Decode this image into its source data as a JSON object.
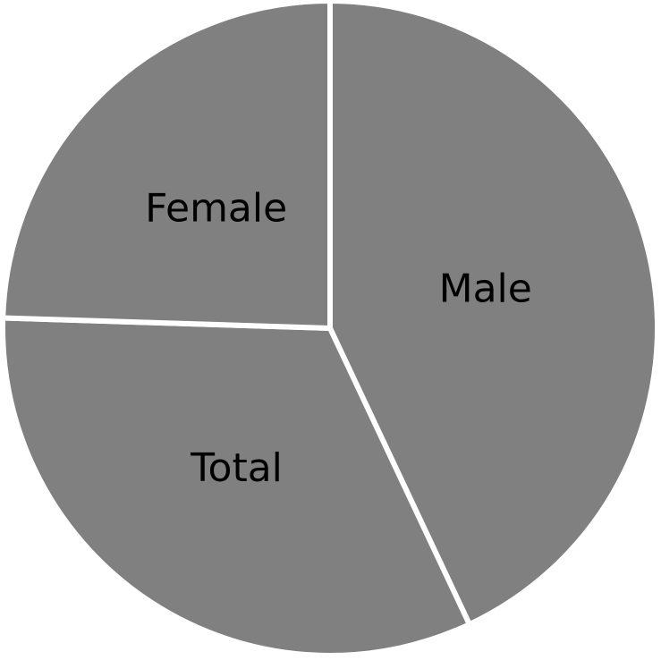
{
  "chart_data": {
    "type": "pie",
    "title": "",
    "categories": [
      "Male",
      "Total",
      "Female"
    ],
    "values": [
      43.0,
      32.5,
      24.5
    ],
    "slice_color": "#808080",
    "separator_color": "#ffffff",
    "label_color": "#000000",
    "start_angle_deg": 0,
    "direction": "clockwise",
    "legend": "none"
  }
}
